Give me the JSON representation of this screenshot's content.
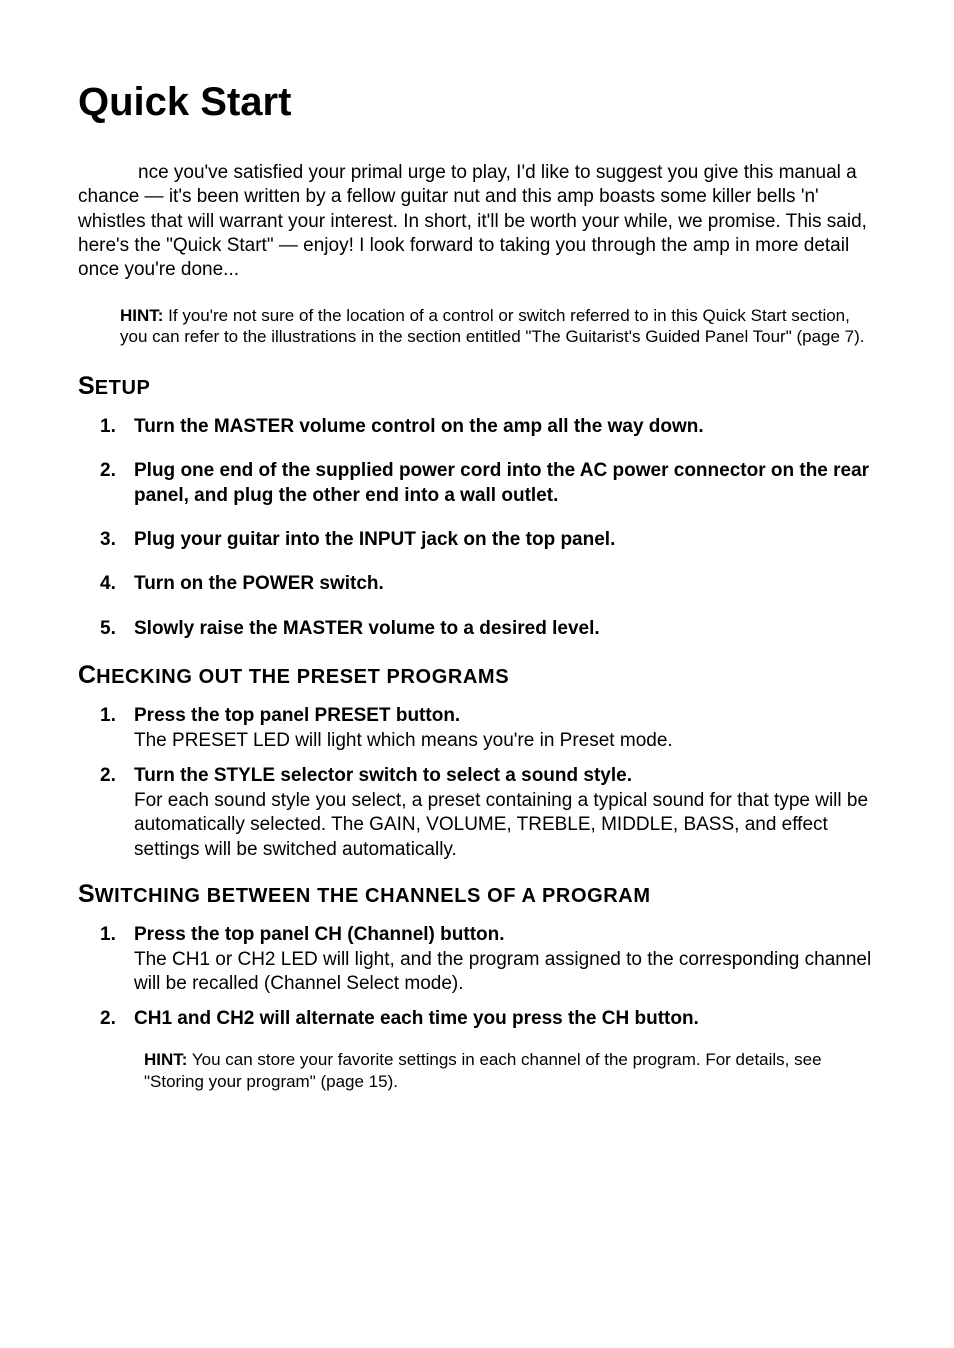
{
  "title": "Quick Start",
  "intro": "nce you've satisfied your primal urge to play, I'd like to suggest you give this manual a chance — it's been written by a fellow guitar nut and this amp boasts some killer bells 'n' whistles that will warrant your interest. In short, it'll be worth your while, we promise. This said, here's the \"Quick Start\" — enjoy! I look forward to taking you through the amp in more detail once you're done...",
  "hint1_label": "HINT:",
  "hint1_text": " If you're not sure of the location of a control or switch referred to in this Quick Start section, you can refer to the illustrations in the section entitled \"The Guitarist's Guided Panel Tour\" (page 7).",
  "section1": {
    "first": "S",
    "rest": "ETUP"
  },
  "setup_steps": [
    {
      "n": "1.",
      "head": "Turn the MASTER volume control on the amp all the way down."
    },
    {
      "n": "2.",
      "head": "Plug one end of the supplied power cord into the AC power connector on the rear panel, and plug the other end into a wall outlet."
    },
    {
      "n": "3.",
      "head": "Plug your guitar into the INPUT jack on the top panel."
    },
    {
      "n": "4.",
      "head": "Turn on the POWER switch."
    },
    {
      "n": "5.",
      "head": "Slowly raise the MASTER volume to a desired level."
    }
  ],
  "section2": {
    "first": "C",
    "rest": "HECKING OUT THE PRESET PROGRAMS"
  },
  "preset_steps": [
    {
      "n": "1.",
      "head": "Press the top panel PRESET button.",
      "desc": "The PRESET LED will light which means you're in Preset mode."
    },
    {
      "n": "2.",
      "head": "Turn the STYLE selector switch to select a sound style.",
      "desc": "For each sound style you select, a preset containing a typical sound for that type will be automatically selected. The GAIN, VOLUME, TREBLE, MIDDLE, BASS, and effect settings will be switched automatically."
    }
  ],
  "section3": {
    "first": "S",
    "rest": "WITCHING BETWEEN THE CHANNELS OF A PROGRAM"
  },
  "switch_steps": [
    {
      "n": "1.",
      "head": "Press the top panel CH (Channel) button.",
      "desc": "The CH1 or CH2 LED will light, and the program assigned to the corresponding channel will be recalled (Channel Select mode)."
    },
    {
      "n": "2.",
      "head": "CH1 and CH2 will alternate each time you press the CH button."
    }
  ],
  "hint2_label": "HINT:",
  "hint2_text": " You can store your favorite settings in each channel of the program. For details, see \"Storing your program\" (page 15).",
  "style": {
    "text_color": "#000000",
    "background_color": "#ffffff",
    "title_fontsize": 40,
    "body_fontsize": 19,
    "hint_fontsize": 17,
    "heading_first_fontsize": 25,
    "heading_rest_fontsize": 20,
    "font_family": "Arial, Helvetica, sans-serif"
  }
}
